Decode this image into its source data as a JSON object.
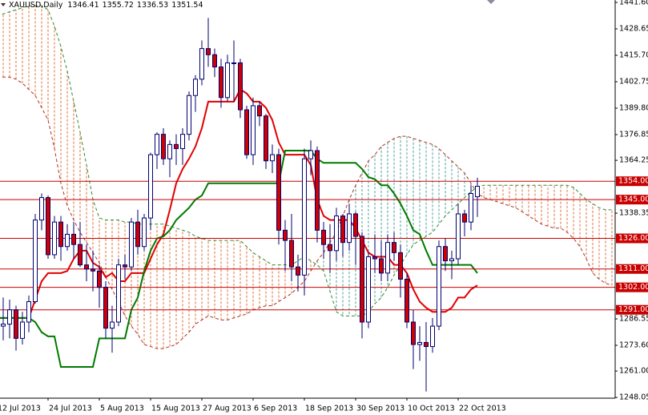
{
  "chart_data": {
    "type": "candlestick",
    "title": "XAUUSD,Daily",
    "categories": [
      "12 Jul 2013",
      null,
      null,
      null,
      null,
      null,
      null,
      null,
      "24 Jul 2013",
      null,
      null,
      null,
      null,
      null,
      null,
      null,
      "5 Aug 2013",
      null,
      null,
      null,
      null,
      null,
      null,
      null,
      "15 Aug 2013",
      null,
      null,
      null,
      null,
      null,
      null,
      null,
      "27 Aug 2013",
      null,
      null,
      null,
      null,
      null,
      null,
      null,
      "6 Sep 2013",
      null,
      null,
      null,
      null,
      null,
      null,
      null,
      "18 Sep 2013",
      null,
      null,
      null,
      null,
      null,
      null,
      null,
      "30 Sep 2013",
      null,
      null,
      null,
      null,
      null,
      null,
      null,
      "10 Oct 2013",
      null,
      null,
      null,
      null,
      null,
      null,
      null,
      "22 Oct 2013",
      null,
      null,
      null,
      null,
      null,
      null,
      null,
      null,
      null,
      null,
      null,
      null,
      null,
      null,
      null,
      null,
      null,
      null,
      null,
      null,
      null,
      null,
      null,
      null
    ],
    "open": [
      1278,
      1283,
      1284,
      1291,
      1277,
      1285,
      1295,
      1335,
      1346,
      1318,
      1334,
      1322,
      1328,
      1323,
      1313,
      1311,
      1310,
      1302,
      1282,
      1285,
      1313,
      1312,
      1334,
      1322,
      1336,
      1367,
      1377,
      1365,
      1372,
      1370,
      1377,
      1396,
      1404,
      1419,
      1416,
      1410,
      1395,
      1412,
      1412,
      1389,
      1367,
      1391,
      1386,
      1364,
      1367,
      1330,
      1325,
      1312,
      1308,
      1365,
      1369,
      1330,
      1323,
      1320,
      1337,
      1324,
      1338,
      1327,
      1285,
      1317,
      1316,
      1309,
      1324,
      1319,
      1306,
      1285,
      1274,
      1275,
      1273,
      1283,
      1322,
      1315,
      1316,
      1338,
      1334,
      1346.41,
      null,
      null,
      null,
      null,
      null,
      null,
      null,
      null,
      null,
      null,
      null,
      null,
      null,
      null,
      null,
      null,
      null,
      null,
      null,
      null,
      null
    ],
    "high": [
      1292,
      1297,
      1296,
      1293,
      1290,
      1298,
      1338,
      1348,
      1347,
      1337,
      1337,
      1333,
      1334,
      1334,
      1323,
      1320,
      1313,
      1305,
      1293,
      1316,
      1318,
      1336,
      1340,
      1338,
      1368,
      1378,
      1380,
      1374,
      1377,
      1380,
      1398,
      1406,
      1423,
      1434,
      1419,
      1414,
      1416,
      1423,
      1414,
      1391,
      1395,
      1393,
      1387,
      1372,
      1370,
      1335,
      1338,
      1318,
      1370,
      1374,
      1371,
      1334,
      1333,
      1341,
      1338,
      1343,
      1339,
      1329,
      1319,
      1328,
      1325,
      1328,
      1329,
      1323,
      1309,
      1291,
      1283,
      1285,
      1287,
      1325,
      1326,
      1320,
      1343,
      1340,
      1352,
      1355.72,
      null,
      null,
      null,
      null,
      null,
      null,
      null,
      null,
      null,
      null,
      null,
      null,
      null,
      null,
      null,
      null,
      null,
      null,
      null,
      null,
      null
    ],
    "low": [
      1270,
      1276,
      1277,
      1271,
      1274,
      1280,
      1294,
      1330,
      1316,
      1316,
      1315,
      1320,
      1316,
      1312,
      1305,
      1300,
      1292,
      1277,
      1270,
      1283,
      1306,
      1310,
      1318,
      1320,
      1330,
      1360,
      1362,
      1356,
      1362,
      1362,
      1374,
      1388,
      1401,
      1410,
      1405,
      1390,
      1393,
      1393,
      1385,
      1365,
      1362,
      1381,
      1360,
      1358,
      1323,
      1310,
      1305,
      1300,
      1298,
      1357,
      1324,
      1316,
      1309,
      1315,
      1317,
      1320,
      1313,
      1277,
      1282,
      1309,
      1305,
      1305,
      1315,
      1297,
      1282,
      1262,
      1266,
      1251,
      1270,
      1281,
      1310,
      1306,
      1313,
      1327,
      1330,
      1336.53,
      null,
      null,
      null,
      null,
      null,
      null,
      null,
      null,
      null,
      null,
      null,
      null,
      null,
      null,
      null,
      null,
      null,
      null,
      null,
      null,
      null
    ],
    "close": [
      1283,
      1284,
      1291,
      1277,
      1285,
      1295,
      1335,
      1346,
      1318,
      1334,
      1322,
      1328,
      1323,
      1313,
      1311,
      1310,
      1302,
      1282,
      1285,
      1313,
      1312,
      1334,
      1322,
      1336,
      1367,
      1377,
      1365,
      1372,
      1370,
      1377,
      1396,
      1404,
      1419,
      1416,
      1410,
      1395,
      1412,
      1412,
      1389,
      1367,
      1391,
      1386,
      1364,
      1367,
      1330,
      1325,
      1312,
      1308,
      1365,
      1369,
      1330,
      1323,
      1320,
      1337,
      1324,
      1338,
      1327,
      1285,
      1317,
      1316,
      1309,
      1324,
      1319,
      1306,
      1285,
      1274,
      1275,
      1273,
      1283,
      1322,
      1315,
      1316,
      1338,
      1334,
      1348,
      1351.54,
      null,
      null,
      null,
      null,
      null,
      null,
      null,
      null,
      null,
      null,
      null,
      null,
      null,
      null,
      null,
      null,
      null,
      null,
      null,
      null,
      null
    ],
    "up_color": "#ffffff",
    "down_color": "#d00000",
    "edge_color": "#000070",
    "lines": [
      {
        "color": "#e00000",
        "values": [
          1287,
          1287,
          1287,
          1287,
          1287,
          1287,
          1296,
          1305,
          1309,
          1309,
          1309,
          1310,
          1316,
          1320,
          1320,
          1314,
          1312,
          1307,
          1309,
          1305,
          1305,
          1309,
          1309,
          1309,
          1316,
          1323,
          1328,
          1340,
          1353,
          1360,
          1365,
          1371,
          1380,
          1393,
          1393,
          1393,
          1393,
          1393,
          1399,
          1397,
          1393,
          1393,
          1390,
          1384,
          1373,
          1367,
          1367,
          1367,
          1367,
          1362,
          1345,
          1337,
          1335,
          1335,
          1335,
          1335,
          1331,
          1325,
          1319,
          1317,
          1317,
          1317,
          1313,
          1313,
          1309,
          1301,
          1295,
          1292,
          1290,
          1290,
          1290,
          1292,
          1297,
          1297,
          1301,
          1303,
          null,
          null,
          null,
          null,
          null,
          null,
          null,
          null,
          null,
          null,
          null,
          null,
          null,
          null,
          null,
          null,
          null,
          null,
          null,
          null,
          null
        ]
      },
      {
        "color": "#007a00",
        "values": [
          1287,
          1287,
          1287,
          1287,
          1287,
          1287,
          1285,
          1280,
          1278,
          1278,
          1263,
          1263,
          1263,
          1263,
          1263,
          1263,
          1277,
          1277,
          1277,
          1277,
          1277,
          1291,
          1297,
          1310,
          1320,
          1326,
          1327,
          1330,
          1335,
          1338,
          1341,
          1345,
          1347,
          1353,
          1353,
          1353,
          1353,
          1353,
          1353,
          1353,
          1353,
          1353,
          1353,
          1353,
          1353,
          1369,
          1369,
          1369,
          1369,
          1369,
          1365,
          1363,
          1363,
          1363,
          1363,
          1363,
          1363,
          1360,
          1356,
          1355,
          1352,
          1352,
          1348,
          1343,
          1337,
          1330,
          1328,
          1320,
          1313,
          1313,
          1313,
          1313,
          1313,
          1313,
          1313,
          1309,
          null,
          null,
          null,
          null,
          null,
          null,
          null,
          null,
          null,
          null,
          null,
          null,
          null,
          null,
          null,
          null,
          null,
          null,
          null,
          null,
          null
        ]
      }
    ],
    "cloud": {
      "a": {
        "color": "#b03020",
        "values": [
          1405,
          1405,
          1405,
          1404,
          1402,
          1399,
          1396,
          1390,
          1384,
          1370,
          1353,
          1342,
          1335,
          1329,
          1324,
          1319,
          1314,
          1307,
          1301,
          1295,
          1288,
          1283,
          1279,
          1274,
          1273,
          1272,
          1272,
          1273,
          1274,
          1277,
          1280,
          1284,
          1286,
          1288,
          1287,
          1286,
          1286,
          1287,
          1288,
          1289,
          1291,
          1292,
          1293,
          1293,
          1295,
          1297,
          1299,
          1302,
          1305,
          1310,
          1315,
          1319,
          1324,
          1329,
          1337,
          1345,
          1352,
          1358,
          1364,
          1367,
          1371,
          1373,
          1375,
          1376,
          1376,
          1375,
          1374,
          1373,
          1372,
          1370,
          1367,
          1364,
          1361,
          1358,
          1353,
          1348,
          1346,
          1345,
          1344,
          1343,
          1342,
          1341,
          1339,
          1337,
          1335,
          1333,
          1332,
          1331,
          1331,
          1329,
          1326,
          1322,
          1316,
          1309,
          1306,
          1304,
          1303
        ]
      },
      "b": {
        "color": "#2e8b2e",
        "values": [
          1435,
          1436,
          1437,
          1438,
          1439,
          1440,
          1440,
          1440,
          1438,
          1430,
          1420,
          1408,
          1393,
          1378,
          1362,
          1345,
          1336,
          1335,
          1335,
          1335,
          1334,
          1334,
          1333,
          1333,
          1333,
          1333,
          1333,
          1332,
          1331,
          1330,
          1329,
          1327,
          1326,
          1325,
          1325,
          1325,
          1325,
          1325,
          1325,
          1322,
          1319,
          1317,
          1315,
          1313,
          1313,
          1313,
          1313,
          1315,
          1317,
          1315,
          1313,
          1310,
          1300,
          1290,
          1288,
          1288,
          1288,
          1288,
          1290,
          1294,
          1297,
          1302,
          1308,
          1313,
          1318,
          1323,
          1325,
          1327,
          1329,
          1333,
          1337,
          1340,
          1343,
          1346,
          1349,
          1351,
          1352,
          1352,
          1352,
          1352,
          1352,
          1352,
          1352,
          1352,
          1352,
          1352,
          1352,
          1352,
          1352,
          1352,
          1351,
          1348,
          1345,
          1343,
          1341,
          1340,
          1340
        ]
      },
      "fill_up": "#4aa39b",
      "fill_down": "#e0703a"
    },
    "levels": [
      {
        "value": 1354,
        "label": "1354.00"
      },
      {
        "value": 1345,
        "label": "1345.00"
      },
      {
        "value": 1326,
        "label": "1326.00"
      },
      {
        "value": 1311,
        "label": "1311.00"
      },
      {
        "value": 1302,
        "label": "1302.00"
      },
      {
        "value": 1291,
        "label": "1291.00"
      }
    ],
    "level_color": "#c80000",
    "ylim": [
      1247.7,
      1442.8
    ],
    "yticks": [
      {
        "value": 1441.6,
        "label": "1441.60"
      },
      {
        "value": 1428.65,
        "label": "1428.65"
      },
      {
        "value": 1415.7,
        "label": "1415.70"
      },
      {
        "value": 1402.75,
        "label": "1402.75"
      },
      {
        "value": 1389.8,
        "label": "1389.80"
      },
      {
        "value": 1376.85,
        "label": "1376.85"
      },
      {
        "value": 1364.25,
        "label": "1364.25"
      },
      {
        "value": 1338.35,
        "label": "1338.35"
      },
      {
        "value": 1286.55,
        "label": "1286.55"
      },
      {
        "value": 1273.6,
        "label": "1273.60"
      },
      {
        "value": 1261,
        "label": "1261.00"
      },
      {
        "value": 1248.05,
        "label": "1248.05"
      }
    ],
    "grid": false
  }
}
